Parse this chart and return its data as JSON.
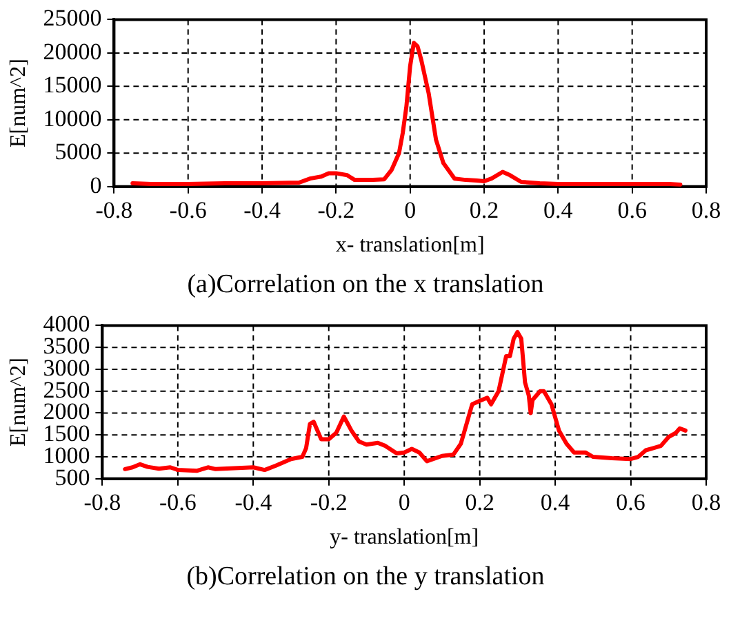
{
  "chart_data": [
    {
      "type": "line",
      "xlabel": "x- translation[m]",
      "ylabel": "E[num^2]",
      "annotations": [
        "(a)Correlation on the x translation"
      ],
      "xlim": [
        -0.8,
        0.8
      ],
      "xticks": [
        -0.8,
        -0.6,
        -0.4,
        -0.2,
        0,
        0.2,
        0.4,
        0.6,
        0.8
      ],
      "ylim": [
        0,
        25000
      ],
      "yticks": [
        0,
        5000,
        10000,
        15000,
        20000,
        25000
      ],
      "grid": true,
      "legend": false,
      "marker": "none",
      "line_style": "solid",
      "series": [
        {
          "color": "#ff0000",
          "x": [
            -0.75,
            -0.7,
            -0.6,
            -0.5,
            -0.4,
            -0.3,
            -0.27,
            -0.24,
            -0.22,
            -0.2,
            -0.17,
            -0.15,
            -0.1,
            -0.07,
            -0.05,
            -0.03,
            -0.02,
            -0.01,
            0,
            0.01,
            0.02,
            0.03,
            0.05,
            0.07,
            0.09,
            0.12,
            0.15,
            0.18,
            0.2,
            0.22,
            0.25,
            0.27,
            0.3,
            0.35,
            0.4,
            0.5,
            0.6,
            0.7,
            0.73
          ],
          "values": [
            500,
            400,
            400,
            500,
            500,
            600,
            1200,
            1500,
            2000,
            2000,
            1700,
            1000,
            1000,
            1100,
            2500,
            5000,
            8000,
            12000,
            18000,
            21500,
            21000,
            19000,
            14000,
            7000,
            3500,
            1200,
            1000,
            900,
            800,
            1200,
            2200,
            1700,
            700,
            500,
            400,
            400,
            400,
            400,
            300
          ]
        }
      ]
    },
    {
      "type": "line",
      "xlabel": "y- translation[m]",
      "ylabel": "E[num^2]",
      "annotations": [
        "(b)Correlation on the y translation"
      ],
      "xlim": [
        -0.8,
        0.8
      ],
      "xticks": [
        -0.8,
        -0.6,
        -0.4,
        -0.2,
        0,
        0.2,
        0.4,
        0.6,
        0.8
      ],
      "ylim": [
        500,
        4000
      ],
      "yticks": [
        500,
        1000,
        1500,
        2000,
        2500,
        3000,
        3500,
        4000
      ],
      "grid": true,
      "legend": false,
      "marker": "none",
      "line_style": "solid",
      "series": [
        {
          "color": "#ff0000",
          "x": [
            -0.74,
            -0.72,
            -0.7,
            -0.68,
            -0.65,
            -0.62,
            -0.6,
            -0.55,
            -0.52,
            -0.5,
            -0.45,
            -0.4,
            -0.37,
            -0.34,
            -0.3,
            -0.27,
            -0.26,
            -0.25,
            -0.24,
            -0.22,
            -0.2,
            -0.18,
            -0.16,
            -0.14,
            -0.12,
            -0.1,
            -0.07,
            -0.05,
            -0.02,
            0,
            0.02,
            0.04,
            0.06,
            0.1,
            0.13,
            0.15,
            0.17,
            0.18,
            0.2,
            0.22,
            0.23,
            0.25,
            0.26,
            0.27,
            0.28,
            0.29,
            0.3,
            0.31,
            0.32,
            0.33,
            0.335,
            0.34,
            0.36,
            0.37,
            0.39,
            0.41,
            0.43,
            0.45,
            0.48,
            0.5,
            0.55,
            0.6,
            0.62,
            0.64,
            0.66,
            0.68,
            0.7,
            0.72,
            0.73,
            0.745
          ],
          "values": [
            720,
            760,
            830,
            770,
            730,
            760,
            700,
            680,
            760,
            720,
            740,
            760,
            700,
            800,
            950,
            1000,
            1200,
            1750,
            1800,
            1400,
            1400,
            1550,
            1920,
            1600,
            1350,
            1280,
            1320,
            1250,
            1080,
            1100,
            1180,
            1100,
            900,
            1020,
            1050,
            1300,
            1900,
            2200,
            2280,
            2350,
            2200,
            2500,
            2900,
            3300,
            3300,
            3700,
            3850,
            3700,
            2700,
            2400,
            2000,
            2300,
            2500,
            2500,
            2200,
            1600,
            1300,
            1100,
            1100,
            1000,
            970,
            950,
            1000,
            1150,
            1200,
            1250,
            1450,
            1550,
            1650,
            1600
          ]
        }
      ]
    }
  ]
}
